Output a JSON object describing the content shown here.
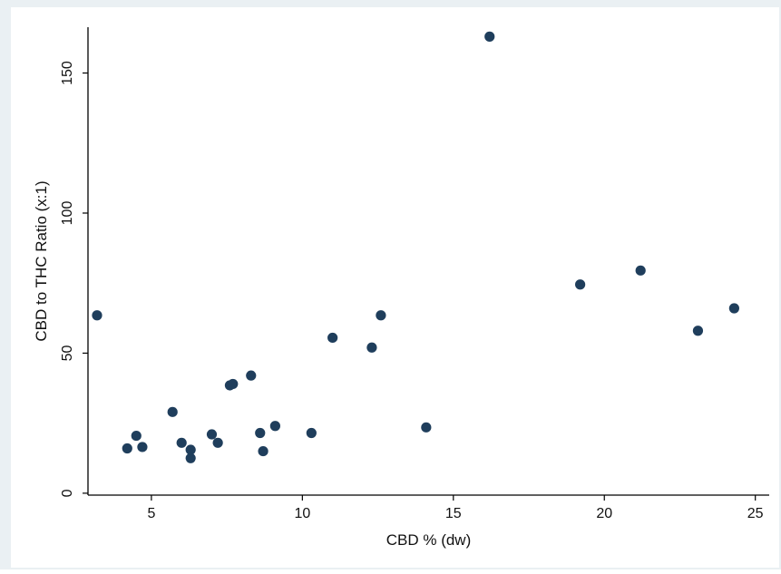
{
  "colors": {
    "outer_background": "#eaf0f3",
    "plot_background": "#ffffff",
    "marker": "#1f3e5c",
    "axis": "#000000"
  },
  "chart_data": {
    "type": "scatter",
    "title": "",
    "xlabel": "CBD % (dw)",
    "ylabel": "CBD to THC Ratio (x:1)",
    "xlim": [
      2.9,
      25.4
    ],
    "ylim": [
      -1,
      167
    ],
    "xticks": [
      5,
      10,
      15,
      20,
      25
    ],
    "yticks": [
      0,
      50,
      100,
      150
    ],
    "grid": false,
    "legend": "none",
    "points": [
      {
        "x": 3.2,
        "y": 63.5
      },
      {
        "x": 4.2,
        "y": 16
      },
      {
        "x": 4.5,
        "y": 20.5
      },
      {
        "x": 4.7,
        "y": 16.5
      },
      {
        "x": 5.7,
        "y": 29
      },
      {
        "x": 6.0,
        "y": 18
      },
      {
        "x": 6.3,
        "y": 15.5
      },
      {
        "x": 6.3,
        "y": 12.5
      },
      {
        "x": 7.0,
        "y": 21
      },
      {
        "x": 7.2,
        "y": 18
      },
      {
        "x": 7.6,
        "y": 38.5
      },
      {
        "x": 7.7,
        "y": 39
      },
      {
        "x": 8.3,
        "y": 42
      },
      {
        "x": 8.6,
        "y": 21.5
      },
      {
        "x": 8.7,
        "y": 15
      },
      {
        "x": 9.1,
        "y": 24
      },
      {
        "x": 10.3,
        "y": 21.5
      },
      {
        "x": 11.0,
        "y": 55.5
      },
      {
        "x": 12.3,
        "y": 52
      },
      {
        "x": 12.6,
        "y": 63.5
      },
      {
        "x": 14.1,
        "y": 23.5
      },
      {
        "x": 16.2,
        "y": 163
      },
      {
        "x": 19.2,
        "y": 74.5
      },
      {
        "x": 21.2,
        "y": 79.5
      },
      {
        "x": 23.1,
        "y": 58
      },
      {
        "x": 24.3,
        "y": 66
      }
    ]
  }
}
